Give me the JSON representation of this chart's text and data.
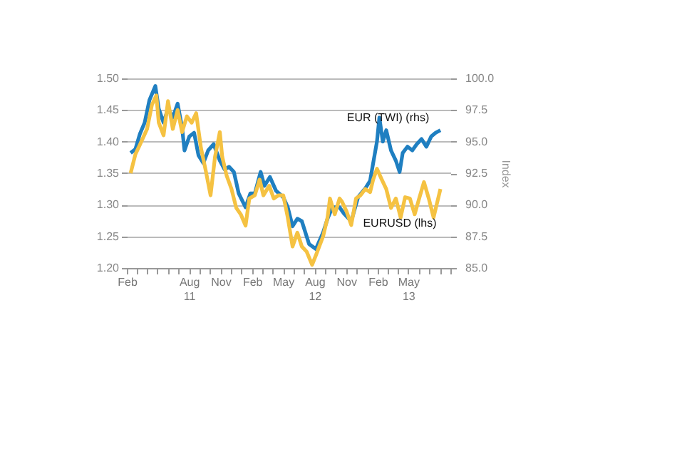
{
  "chart_data": {
    "type": "line",
    "y2label": "Index",
    "grid": "y",
    "xlim": [
      "2011-02-01",
      "2013-09-01"
    ],
    "xticks": [
      {
        "value": "2011-02-01",
        "label": "Feb"
      },
      {
        "value": "2011-03-01",
        "label": null
      },
      {
        "value": "2011-04-01",
        "label": null
      },
      {
        "value": "2011-05-01",
        "label": null
      },
      {
        "value": "2011-06-01",
        "label": null
      },
      {
        "value": "2011-07-01",
        "label": null
      },
      {
        "value": "2011-08-01",
        "label": "Aug\n11"
      },
      {
        "value": "2011-09-01",
        "label": null
      },
      {
        "value": "2011-10-01",
        "label": null
      },
      {
        "value": "2011-11-01",
        "label": "Nov"
      },
      {
        "value": "2011-12-01",
        "label": null
      },
      {
        "value": "2012-01-01",
        "label": null
      },
      {
        "value": "2012-02-01",
        "label": "Feb"
      },
      {
        "value": "2012-03-01",
        "label": null
      },
      {
        "value": "2012-04-01",
        "label": null
      },
      {
        "value": "2012-05-01",
        "label": "May"
      },
      {
        "value": "2012-06-01",
        "label": null
      },
      {
        "value": "2012-07-01",
        "label": null
      },
      {
        "value": "2012-08-01",
        "label": "Aug\n12"
      },
      {
        "value": "2012-09-01",
        "label": null
      },
      {
        "value": "2012-10-01",
        "label": null
      },
      {
        "value": "2012-11-01",
        "label": "Nov"
      },
      {
        "value": "2012-12-01",
        "label": null
      },
      {
        "value": "2013-01-01",
        "label": null
      },
      {
        "value": "2013-02-01",
        "label": "Feb"
      },
      {
        "value": "2013-03-01",
        "label": null
      },
      {
        "value": "2013-04-01",
        "label": null
      },
      {
        "value": "2013-05-01",
        "label": "May\n13"
      },
      {
        "value": "2013-06-01",
        "label": null
      },
      {
        "value": "2013-07-01",
        "label": null
      },
      {
        "value": "2013-08-01",
        "label": null
      },
      {
        "value": "2013-09-01",
        "label": null
      }
    ],
    "ylim": [
      1.2,
      1.5
    ],
    "yticks": [
      {
        "value": 1.2,
        "label": "1.20"
      },
      {
        "value": 1.25,
        "label": "1.25"
      },
      {
        "value": 1.3,
        "label": "1.30"
      },
      {
        "value": 1.35,
        "label": "1.35"
      },
      {
        "value": 1.4,
        "label": "1.40"
      },
      {
        "value": 1.45,
        "label": "1.45"
      },
      {
        "value": 1.5,
        "label": "1.50"
      }
    ],
    "y2lim": [
      85,
      100
    ],
    "y2ticks": [
      {
        "value": 85,
        "label": "85.0"
      },
      {
        "value": 87.5,
        "label": "87.5"
      },
      {
        "value": 90,
        "label": "90.0"
      },
      {
        "value": 92.5,
        "label": "92.5"
      },
      {
        "value": 95,
        "label": "95.0"
      },
      {
        "value": 97.5,
        "label": "97.5"
      },
      {
        "value": 100,
        "label": "100.0"
      }
    ],
    "series": [
      {
        "name": "EUR (TWI) (rhs)",
        "color": "#1f7fc1",
        "axis": "y2",
        "x": [
          "2011-02-12",
          "2011-02-26",
          "2011-03-11",
          "2011-03-25",
          "2011-04-08",
          "2011-04-25",
          "2011-05-05",
          "2011-05-19",
          "2011-06-01",
          "2011-06-15",
          "2011-06-29",
          "2011-07-12",
          "2011-07-19",
          "2011-08-02",
          "2011-08-16",
          "2011-08-29",
          "2011-09-12",
          "2011-09-26",
          "2011-10-12",
          "2011-10-30",
          "2011-11-13",
          "2011-11-26",
          "2011-12-10",
          "2011-12-24",
          "2012-01-13",
          "2012-01-27",
          "2012-02-09",
          "2012-02-26",
          "2012-03-08",
          "2012-03-24",
          "2012-04-11",
          "2012-05-02",
          "2012-05-15",
          "2012-05-29",
          "2012-06-12",
          "2012-06-25",
          "2012-07-16",
          "2012-08-05",
          "2012-08-26",
          "2012-09-08",
          "2012-09-22",
          "2012-10-13",
          "2012-10-26",
          "2012-11-16",
          "2012-12-06",
          "2012-12-27",
          "2013-01-10",
          "2013-01-19",
          "2013-01-30",
          "2013-02-06",
          "2013-02-16",
          "2013-02-26",
          "2013-03-12",
          "2013-03-26",
          "2013-04-06",
          "2013-04-15",
          "2013-04-29",
          "2013-05-13",
          "2013-05-26",
          "2013-06-09",
          "2013-06-23",
          "2013-07-07",
          "2013-07-20",
          "2013-08-03"
        ],
        "values": [
          94.1,
          94.4,
          95.6,
          96.5,
          98.3,
          99.4,
          97.6,
          96.5,
          97.6,
          96.9,
          98.0,
          96.1,
          94.3,
          95.4,
          95.7,
          93.9,
          93.3,
          94.3,
          94.8,
          93.5,
          92.8,
          93.0,
          92.6,
          90.9,
          89.8,
          90.9,
          90.9,
          92.6,
          91.5,
          92.2,
          91.1,
          90.6,
          89.8,
          88.3,
          88.9,
          88.7,
          86.9,
          86.5,
          87.8,
          88.9,
          89.8,
          89.8,
          89.3,
          88.7,
          90.6,
          91.3,
          91.9,
          93.3,
          95.0,
          96.9,
          95.0,
          95.9,
          94.3,
          93.5,
          92.6,
          94.1,
          94.6,
          94.3,
          94.8,
          95.2,
          94.6,
          95.4,
          95.7,
          95.9
        ]
      },
      {
        "name": "EURUSD (lhs)",
        "color": "#f5c242",
        "axis": "y",
        "x": [
          "2011-02-12",
          "2011-02-26",
          "2011-03-11",
          "2011-04-01",
          "2011-04-15",
          "2011-04-28",
          "2011-05-05",
          "2011-05-19",
          "2011-06-01",
          "2011-06-15",
          "2011-06-29",
          "2011-07-12",
          "2011-07-26",
          "2011-08-09",
          "2011-08-22",
          "2011-09-05",
          "2011-09-19",
          "2011-10-03",
          "2011-10-16",
          "2011-10-30",
          "2011-11-06",
          "2011-11-19",
          "2011-12-03",
          "2011-12-17",
          "2011-12-30",
          "2012-01-13",
          "2012-01-24",
          "2012-02-09",
          "2012-02-23",
          "2012-03-05",
          "2012-03-22",
          "2012-04-04",
          "2012-04-18",
          "2012-05-02",
          "2012-05-15",
          "2012-05-29",
          "2012-06-12",
          "2012-06-25",
          "2012-07-09",
          "2012-07-25",
          "2012-08-05",
          "2012-08-26",
          "2012-09-08",
          "2012-09-15",
          "2012-09-29",
          "2012-10-13",
          "2012-10-20",
          "2012-11-02",
          "2012-11-16",
          "2012-11-30",
          "2012-12-13",
          "2012-12-27",
          "2013-01-10",
          "2013-01-19",
          "2013-01-30",
          "2013-02-13",
          "2013-02-26",
          "2013-03-12",
          "2013-03-26",
          "2013-04-09",
          "2013-04-22",
          "2013-05-06",
          "2013-05-20",
          "2013-06-02",
          "2013-06-16",
          "2013-06-30",
          "2013-07-14",
          "2013-08-03"
        ],
        "values": [
          1.35,
          1.38,
          1.395,
          1.42,
          1.458,
          1.473,
          1.43,
          1.41,
          1.464,
          1.42,
          1.45,
          1.415,
          1.44,
          1.43,
          1.445,
          1.39,
          1.354,
          1.315,
          1.376,
          1.415,
          1.376,
          1.346,
          1.325,
          1.295,
          1.285,
          1.267,
          1.31,
          1.315,
          1.34,
          1.315,
          1.33,
          1.31,
          1.315,
          1.315,
          1.28,
          1.234,
          1.256,
          1.234,
          1.226,
          1.205,
          1.22,
          1.25,
          1.28,
          1.31,
          1.285,
          1.31,
          1.305,
          1.29,
          1.268,
          1.31,
          1.315,
          1.325,
          1.32,
          1.34,
          1.357,
          1.34,
          1.325,
          1.295,
          1.31,
          1.28,
          1.312,
          1.31,
          1.285,
          1.31,
          1.336,
          1.31,
          1.28,
          1.325
        ]
      }
    ]
  }
}
